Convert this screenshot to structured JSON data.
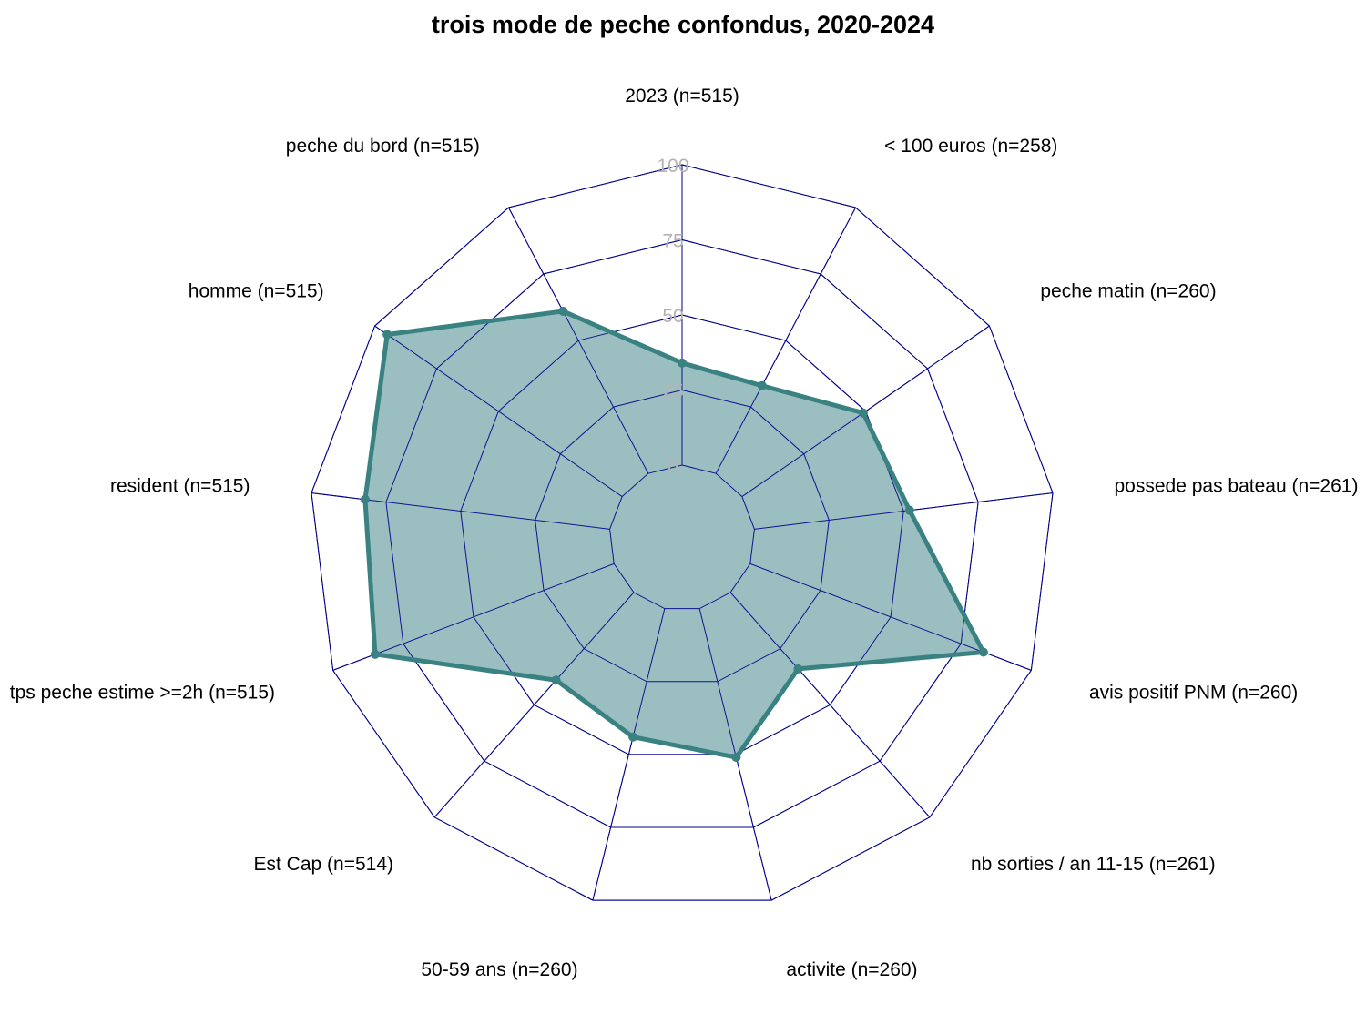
{
  "chart_data": {
    "type": "radar",
    "title": "trois mode de peche confondus, 2020-2024",
    "axes": [
      "2023 (n=515)",
      "< 100 euros (n=258)",
      "peche matin (n=260)",
      "possede pas bateau (n=261)",
      "avis positif PNM (n=260)",
      "nb sorties / an 11-15 (n=261)",
      "activite (n=260)",
      "50-59 ans (n=260)",
      "Est Cap (n=514)",
      "tps peche estime >=2h (n=515)",
      "resident (n=515)",
      "homme (n=515)",
      "peche du bord (n=515)"
    ],
    "values": [
      34,
      33,
      49,
      52,
      83,
      34,
      51,
      44,
      39,
      85,
      82,
      95,
      61
    ],
    "ticks": [
      "0",
      "25",
      "50",
      "75",
      "100"
    ],
    "range": [
      0,
      100
    ],
    "grid": true,
    "series_color": "#3a8281",
    "fill_color": "#9bbfc0",
    "grid_color": "#00008b",
    "tick_color": "#b3b3b3"
  }
}
